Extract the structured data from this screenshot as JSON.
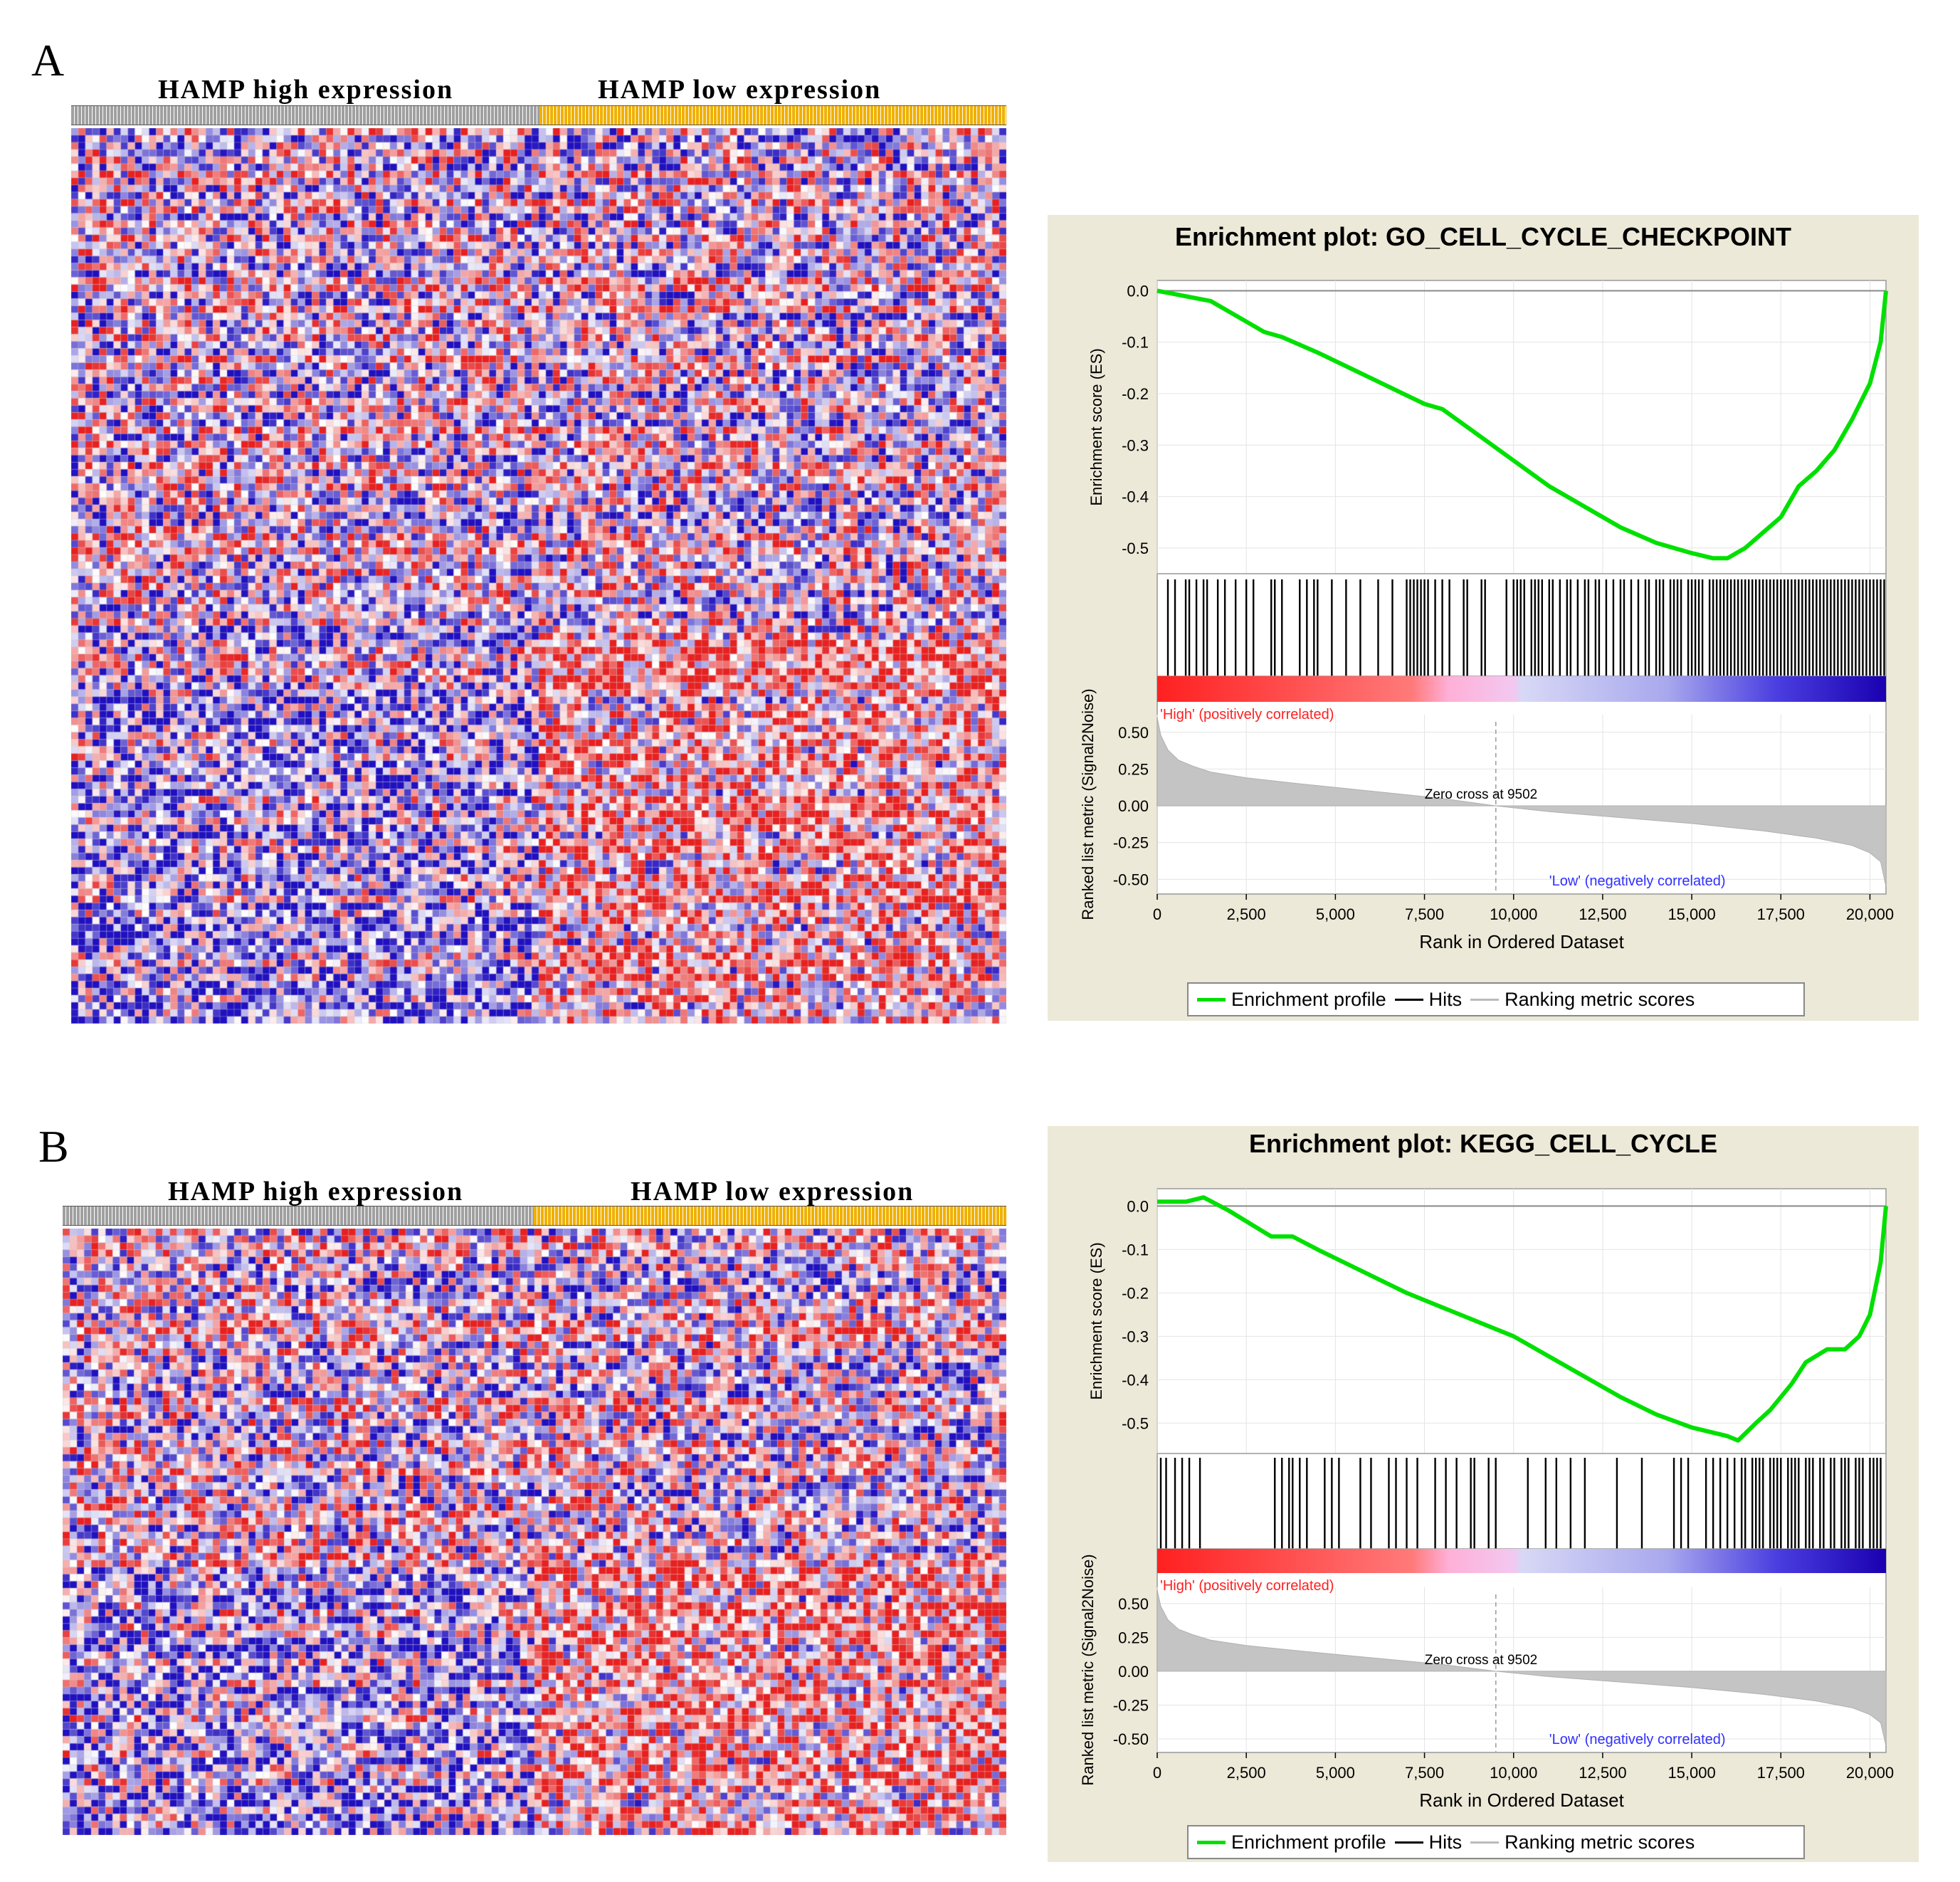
{
  "panels": [
    {
      "letter": "A",
      "heatmap": {
        "label_high": "HAMP high expression",
        "label_low": "HAMP low expression",
        "color_high_bar": "#a0a0a0",
        "color_low_bar": "#f0b000",
        "color_up": "#e82020",
        "color_down": "#2010c0",
        "seed": 7
      },
      "chart_data": {
        "type": "line",
        "title": "Enrichment plot: GO_CELL_CYCLE_CHECKPOINT",
        "es_ylabel": "Enrichment score (ES)",
        "es_yticks": [
          "0.0",
          "-0.1",
          "-0.2",
          "-0.3",
          "-0.4",
          "-0.5"
        ],
        "es_ylim": [
          -0.55,
          0.02
        ],
        "es_curve": {
          "name": "Enrichment profile",
          "x": [
            0,
            1500,
            2500,
            3000,
            3500,
            4500,
            6000,
            7500,
            8000,
            9000,
            10000,
            11000,
            12000,
            13000,
            14000,
            15000,
            15600,
            16000,
            16500,
            17000,
            17500,
            18000,
            18500,
            19000,
            19500,
            20000,
            20300,
            20450
          ],
          "y": [
            0.0,
            -0.02,
            -0.06,
            -0.08,
            -0.09,
            -0.12,
            -0.17,
            -0.22,
            -0.23,
            -0.28,
            -0.33,
            -0.38,
            -0.42,
            -0.46,
            -0.49,
            -0.51,
            -0.52,
            -0.52,
            -0.5,
            -0.47,
            -0.44,
            -0.38,
            -0.35,
            -0.31,
            -0.25,
            -0.18,
            -0.1,
            0.0
          ]
        },
        "hits": [
          300,
          500,
          800,
          900,
          1100,
          1300,
          1400,
          1700,
          1900,
          2200,
          2500,
          2700,
          3200,
          3300,
          3500,
          4000,
          4200,
          4400,
          4500,
          4900,
          5300,
          5700,
          6200,
          6600,
          7000,
          7100,
          7200,
          7300,
          7400,
          7500,
          7600,
          7800,
          8000,
          8200,
          8600,
          8700,
          9100,
          9200,
          9800,
          10000,
          10100,
          10200,
          10300,
          10500,
          10600,
          10700,
          10800,
          11000,
          11100,
          11300,
          11500,
          11600,
          11800,
          12000,
          12100,
          12300,
          12400,
          12600,
          12800,
          13000,
          13100,
          13300,
          13500,
          13700,
          13800,
          14000,
          14100,
          14200,
          14400,
          14500,
          14600,
          14700,
          14900,
          15000,
          15100,
          15200,
          15300,
          15500,
          15600,
          15700,
          15800,
          15900,
          16000,
          16100,
          16200,
          16300,
          16400,
          16500,
          16600,
          16700,
          16800,
          16900,
          17000,
          17100,
          17200,
          17300,
          17400,
          17500,
          17600,
          17700,
          17800,
          17900,
          18000,
          18100,
          18200,
          18300,
          18400,
          18500,
          18600,
          18700,
          18800,
          18900,
          19000,
          19100,
          19200,
          19300,
          19400,
          19500,
          19600,
          19700,
          19800,
          19900,
          20000,
          20100,
          20200,
          20300,
          20400
        ],
        "high_label": "'High' (positively correlated)",
        "low_label": "'Low' (negatively correlated)",
        "metric_ylabel": "Ranked list metric (Signal2Noise)",
        "metric_yticks": [
          "0.50",
          "0.25",
          "0.00",
          "-0.25",
          "-0.50"
        ],
        "metric_ylim": [
          -0.6,
          0.62
        ],
        "metric_curve": {
          "x": [
            0,
            100,
            300,
            600,
            1000,
            1500,
            2500,
            4000,
            6000,
            8000,
            9502,
            11000,
            13000,
            15000,
            17000,
            18500,
            19500,
            20000,
            20300,
            20450
          ],
          "y": [
            0.6,
            0.48,
            0.38,
            0.31,
            0.27,
            0.23,
            0.19,
            0.15,
            0.1,
            0.05,
            0.0,
            -0.04,
            -0.08,
            -0.12,
            -0.17,
            -0.22,
            -0.27,
            -0.32,
            -0.38,
            -0.55
          ]
        },
        "zero_cross_label": "Zero cross at 9502",
        "zero_cross": 9502,
        "xlabel": "Rank in Ordered Dataset",
        "xticks": [
          "0",
          "2,500",
          "5,000",
          "7,500",
          "10,000",
          "12,500",
          "15,000",
          "17,500",
          "20,000"
        ],
        "xlim": [
          0,
          20450
        ],
        "legend": [
          "Enrichment profile",
          "Hits",
          "Ranking metric scores"
        ]
      }
    },
    {
      "letter": "B",
      "heatmap": {
        "label_high": "HAMP high expression",
        "label_low": "HAMP low expression",
        "color_high_bar": "#a0a0a0",
        "color_low_bar": "#f0b000",
        "color_up": "#e82020",
        "color_down": "#2010c0",
        "seed": 19
      },
      "chart_data": {
        "type": "line",
        "title": "Enrichment plot: KEGG_CELL_CYCLE",
        "es_ylabel": "Enrichment score (ES)",
        "es_yticks": [
          "0.0",
          "-0.1",
          "-0.2",
          "-0.3",
          "-0.4",
          "-0.5"
        ],
        "es_ylim": [
          -0.57,
          0.04
        ],
        "es_curve": {
          "name": "Enrichment profile",
          "x": [
            0,
            800,
            1300,
            2000,
            2800,
            3200,
            3800,
            4500,
            5500,
            7000,
            8500,
            10000,
            11500,
            13000,
            14000,
            15000,
            16000,
            16300,
            16800,
            17200,
            17800,
            18200,
            18800,
            19300,
            19700,
            20000,
            20300,
            20450
          ],
          "y": [
            0.01,
            0.01,
            0.02,
            -0.01,
            -0.05,
            -0.07,
            -0.07,
            -0.1,
            -0.14,
            -0.2,
            -0.25,
            -0.3,
            -0.37,
            -0.44,
            -0.48,
            -0.51,
            -0.53,
            -0.54,
            -0.5,
            -0.47,
            -0.41,
            -0.36,
            -0.33,
            -0.33,
            -0.3,
            -0.25,
            -0.13,
            0.0
          ]
        },
        "hits": [
          100,
          250,
          500,
          700,
          900,
          1200,
          3300,
          3500,
          3700,
          3800,
          4000,
          4200,
          4700,
          4900,
          5100,
          5700,
          6000,
          6500,
          6700,
          7000,
          7300,
          7800,
          8100,
          8400,
          8800,
          8900,
          9300,
          9500,
          10400,
          10900,
          11200,
          11600,
          12000,
          12900,
          13600,
          14500,
          14700,
          14900,
          15400,
          15600,
          15800,
          16000,
          16200,
          16400,
          16500,
          16700,
          16800,
          16900,
          17000,
          17200,
          17300,
          17400,
          17500,
          17700,
          17800,
          17900,
          18000,
          18200,
          18300,
          18400,
          18600,
          18700,
          18900,
          19000,
          19200,
          19300,
          19400,
          19600,
          19700,
          19800,
          20000,
          20100,
          20200,
          20300
        ],
        "high_label": "'High' (positively correlated)",
        "low_label": "'Low' (negatively correlated)",
        "metric_ylabel": "Ranked list metric (Signal2Noise)",
        "metric_yticks": [
          "0.50",
          "0.25",
          "0.00",
          "-0.25",
          "-0.50"
        ],
        "metric_ylim": [
          -0.6,
          0.62
        ],
        "metric_curve": {
          "x": [
            0,
            100,
            300,
            600,
            1000,
            1500,
            2500,
            4000,
            6000,
            8000,
            9502,
            11000,
            13000,
            15000,
            17000,
            18500,
            19500,
            20000,
            20300,
            20450
          ],
          "y": [
            0.6,
            0.48,
            0.38,
            0.31,
            0.27,
            0.23,
            0.19,
            0.15,
            0.1,
            0.05,
            0.0,
            -0.04,
            -0.08,
            -0.12,
            -0.17,
            -0.22,
            -0.27,
            -0.32,
            -0.38,
            -0.55
          ]
        },
        "zero_cross_label": "Zero cross at 9502",
        "zero_cross": 9502,
        "xlabel": "Rank in Ordered Dataset",
        "xticks": [
          "0",
          "2,500",
          "5,000",
          "7,500",
          "10,000",
          "12,500",
          "15,000",
          "17,500",
          "20,000"
        ],
        "xlim": [
          0,
          20450
        ],
        "legend": [
          "Enrichment profile",
          "Hits",
          "Ranking metric scores"
        ]
      }
    }
  ]
}
